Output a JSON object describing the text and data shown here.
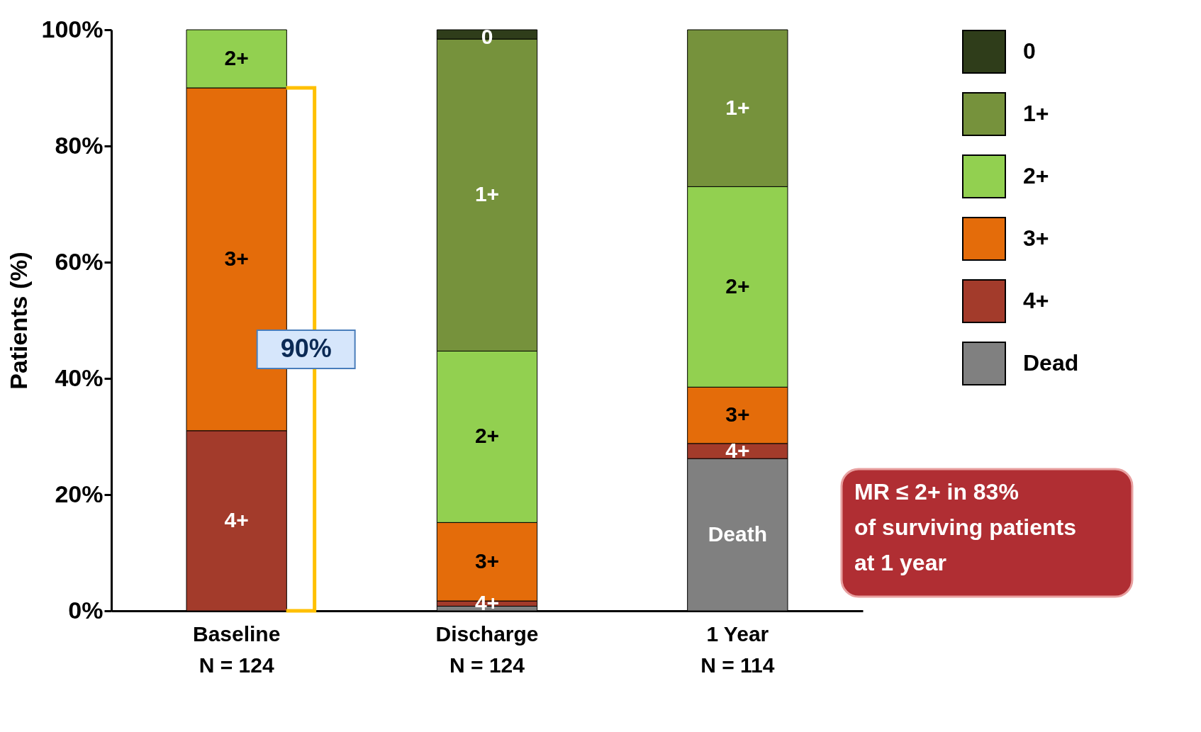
{
  "chart_data": {
    "type": "bar",
    "stacked": true,
    "ylabel": "Patients (%)",
    "categories": [
      "Baseline\nN = 124",
      "Discharge\nN = 124",
      "1 Year\nN = 114"
    ],
    "series": [
      {
        "name": "Dead",
        "color": "#808080",
        "values": [
          0,
          0.8,
          26.2
        ],
        "value_labels": [
          null,
          null,
          "Death"
        ]
      },
      {
        "name": "4+",
        "color": "#a33b2b",
        "values": [
          31,
          0.9,
          2.6
        ],
        "value_labels": [
          "4+",
          "4+",
          "4+"
        ]
      },
      {
        "name": "3+",
        "color": "#e46c0a",
        "values": [
          59,
          13.5,
          9.7
        ],
        "value_labels": [
          "3+",
          "3+",
          "3+"
        ]
      },
      {
        "name": "2+",
        "color": "#92d050",
        "values": [
          10,
          29.5,
          34.5
        ],
        "value_labels": [
          "2+",
          "2+",
          "2+"
        ]
      },
      {
        "name": "1+",
        "color": "#76923c",
        "values": [
          0,
          53.7,
          27
        ],
        "value_labels": [
          null,
          "1+",
          "1+"
        ]
      },
      {
        "name": "0",
        "color": "#2f3d1a",
        "values": [
          0,
          1.6,
          0
        ],
        "value_labels": [
          null,
          null,
          null
        ]
      }
    ],
    "ylim": [
      0,
      100
    ],
    "yticks": [
      {
        "value": 0,
        "label": "0%"
      },
      {
        "value": 20,
        "label": "20%"
      },
      {
        "value": 40,
        "label": "40%"
      },
      {
        "value": 60,
        "label": "60%"
      },
      {
        "value": 80,
        "label": "80%"
      },
      {
        "value": 100,
        "label": "100%"
      }
    ],
    "grid": false,
    "legend": "right",
    "annotations": [
      {
        "text": "0",
        "x": "Discharge\nN = 124",
        "y": 100
      },
      "90%",
      "MR ≤ 2+ in 83%\nof surviving patients\nat 1 year"
    ]
  }
}
